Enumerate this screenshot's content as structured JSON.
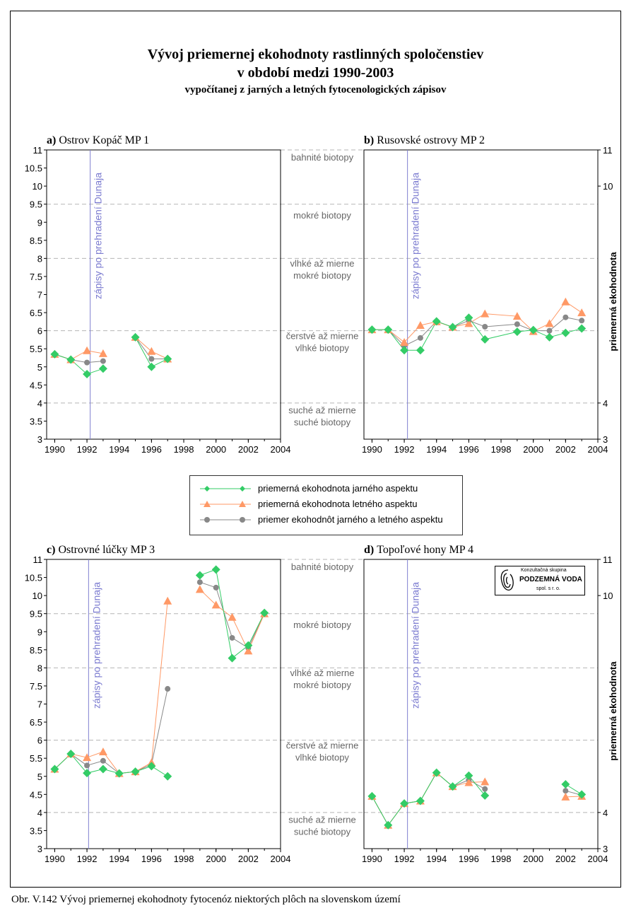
{
  "title_line1": "Vývoj priemernej ekohodnoty rastlinných spoločenstiev",
  "title_line2": "v období medzi 1990-2003",
  "title_line3": "vypočítanej z jarných a letných fytocenologických zápisov",
  "caption": "Obr. V.142 Vývoj priemernej ekohodnoty fytocenóz niektorých plôch na slovenskom území",
  "logo": {
    "line1": "Konzultačná skupina",
    "line2": "PODZEMNÁ VODA",
    "line3": "spol. s r. o."
  },
  "legend": [
    {
      "label": "priemerná ekohodnota jarného aspektu",
      "color": "#33cc66",
      "marker": "diamond"
    },
    {
      "label": "priemerná ekohodnota letného aspektu",
      "color": "#ff9966",
      "marker": "triangle"
    },
    {
      "label": "priemer ekohodnôt jarného a letného aspektu",
      "color": "#888888",
      "marker": "circle"
    }
  ],
  "biotope_zones": [
    {
      "lines": [
        "bahnité biotopy"
      ]
    },
    {
      "lines": [
        "mokré biotopy"
      ]
    },
    {
      "lines": [
        "vlhké až mierne",
        "mokré biotopy"
      ]
    },
    {
      "lines": [
        "čerstvé až mierne",
        "vlhké biotopy"
      ]
    },
    {
      "lines": [
        "suché až mierne",
        "suché biotopy"
      ]
    }
  ],
  "right_axis_label": "priemerná ekohodnota",
  "chart_data": [
    {
      "type": "line",
      "title_bold": "a)",
      "title_rest": "Ostrov Kopáč MP 1",
      "annotation": "zápisy po prehradení Dunaja",
      "annotation_x": 1992.2,
      "xlim": [
        1989.5,
        2004
      ],
      "ylim": [
        3,
        11
      ],
      "x_ticks": [
        1990,
        1992,
        1994,
        1996,
        1998,
        2000,
        2002,
        2004
      ],
      "y_ticks": [
        "3",
        "3.5",
        "4",
        "4.5",
        "5",
        "5.5",
        "6",
        "6.5",
        "7",
        "7.5",
        "8",
        "8.5",
        "9",
        "9.5",
        "10",
        "10.5",
        "11"
      ],
      "y_tick_side": "left",
      "reference_lines": [
        4,
        6,
        8,
        9.5,
        11
      ],
      "series": [
        {
          "name": "priemerná ekohodnota jarného aspektu",
          "x": [
            1990,
            1991,
            1992,
            1993,
            null,
            1995,
            1996,
            1997
          ],
          "y": [
            5.35,
            5.2,
            4.8,
            4.95,
            null,
            5.82,
            5.0,
            5.22
          ]
        },
        {
          "name": "priemerná ekohodnota letného aspektu",
          "x": [
            1990,
            1991,
            1992,
            1993,
            null,
            1995,
            1996,
            1997
          ],
          "y": [
            5.35,
            5.2,
            5.45,
            5.37,
            null,
            5.82,
            5.43,
            5.22
          ]
        },
        {
          "name": "priemer ekohodnôt jarného a letného aspektu",
          "x": [
            1990,
            1991,
            1992,
            1993,
            null,
            1995,
            1996,
            1997
          ],
          "y": [
            5.35,
            5.2,
            5.12,
            5.16,
            null,
            5.82,
            5.22,
            5.22
          ]
        }
      ]
    },
    {
      "type": "line",
      "title_bold": "b)",
      "title_rest": "Rusovské ostrovy MP 2",
      "annotation": "zápisy po prehradení Dunaja",
      "annotation_x": 1992.2,
      "xlim": [
        1989.5,
        2004
      ],
      "ylim": [
        3,
        11
      ],
      "x_ticks": [
        1990,
        1992,
        1994,
        1996,
        1998,
        2000,
        2002,
        2004
      ],
      "y_ticks": [
        "3",
        "4",
        "10",
        "11"
      ],
      "y_tick_values": [
        3,
        4,
        10,
        11
      ],
      "y_tick_side": "right",
      "reference_lines": [
        4,
        6,
        8,
        9.5,
        11
      ],
      "series": [
        {
          "name": "priemerná ekohodnota jarného aspektu",
          "x": [
            1990,
            1991,
            1992,
            1993,
            1994,
            1995,
            1996,
            1997,
            1999,
            2000,
            2001,
            2002,
            2003
          ],
          "y": [
            6.03,
            6.03,
            5.46,
            5.46,
            6.26,
            6.1,
            6.36,
            5.76,
            5.97,
            6.02,
            5.82,
            5.94,
            6.06
          ]
        },
        {
          "name": "priemerná ekohodnota letného aspektu",
          "x": [
            1990,
            1991,
            1992,
            1993,
            1994,
            1995,
            1996,
            1997,
            1999,
            2000,
            2001,
            2002,
            2003
          ],
          "y": [
            6.03,
            6.03,
            5.68,
            6.15,
            6.25,
            6.1,
            6.2,
            6.47,
            6.4,
            5.98,
            6.2,
            6.8,
            6.5
          ]
        },
        {
          "name": "priemer ekohodnôt jarného a letného aspektu",
          "x": [
            1990,
            1991,
            1992,
            1993,
            1994,
            1995,
            1996,
            1997,
            1999,
            2000,
            2001,
            2002,
            2003
          ],
          "y": [
            6.03,
            6.03,
            5.58,
            5.8,
            6.26,
            6.1,
            6.28,
            6.11,
            6.18,
            6.0,
            6.0,
            6.37,
            6.28
          ]
        }
      ]
    },
    {
      "type": "line",
      "title_bold": "c)",
      "title_rest": "Ostrovné lúčky MP 3",
      "annotation": "zápisy po prehradení Dunaja",
      "annotation_x": 1992.1,
      "xlim": [
        1989.5,
        2004
      ],
      "ylim": [
        3,
        11
      ],
      "x_ticks": [
        1990,
        1992,
        1994,
        1996,
        1998,
        2000,
        2002,
        2004
      ],
      "y_ticks": [
        "3",
        "3.5",
        "4",
        "4.5",
        "5",
        "5.5",
        "6",
        "6.5",
        "7",
        "7.5",
        "8",
        "8.5",
        "9",
        "9.5",
        "10",
        "10.5",
        "11"
      ],
      "y_tick_side": "left",
      "reference_lines": [
        4,
        6,
        8,
        9.5,
        11
      ],
      "series": [
        {
          "name": "priemerná ekohodnota jarného aspektu",
          "x": [
            1990,
            1991,
            1992,
            1993,
            1994,
            1995,
            1996,
            1997,
            null,
            1999,
            2000,
            2001,
            2002,
            2003
          ],
          "y": [
            5.2,
            5.62,
            5.09,
            5.2,
            5.08,
            5.13,
            5.28,
            5.0,
            null,
            10.56,
            10.72,
            8.27,
            8.62,
            9.52
          ]
        },
        {
          "name": "priemerná ekohodnota letného aspektu",
          "x": [
            1990,
            1991,
            1992,
            1993,
            1994,
            1995,
            1996,
            1997,
            null,
            1999,
            2000,
            2001,
            2002,
            2003
          ],
          "y": [
            5.2,
            5.62,
            5.52,
            5.68,
            5.08,
            5.13,
            5.38,
            9.85,
            null,
            10.17,
            9.74,
            9.4,
            8.47,
            9.5
          ]
        },
        {
          "name": "priemer ekohodnôt jarného a letného aspektu",
          "x": [
            1990,
            1991,
            1992,
            1993,
            1994,
            1995,
            1996,
            1997,
            null,
            1999,
            2000,
            2001,
            2002,
            2003
          ],
          "y": [
            5.2,
            5.62,
            5.3,
            5.43,
            5.08,
            5.13,
            5.33,
            7.42,
            null,
            10.37,
            10.22,
            8.83,
            8.55,
            9.51
          ]
        }
      ]
    },
    {
      "type": "line",
      "title_bold": "d)",
      "title_rest": "Topoľové hony MP 4",
      "annotation": "zápisy po prehradení Dunaja",
      "annotation_x": 1992.2,
      "xlim": [
        1989.5,
        2004
      ],
      "ylim": [
        3,
        11
      ],
      "x_ticks": [
        1990,
        1992,
        1994,
        1996,
        1998,
        2000,
        2002,
        2004
      ],
      "y_ticks": [
        "3",
        "4",
        "10",
        "11"
      ],
      "y_tick_values": [
        3,
        4,
        10,
        11
      ],
      "y_tick_side": "right",
      "reference_lines": [
        4,
        6,
        8,
        9.5,
        11
      ],
      "series": [
        {
          "name": "priemerná ekohodnota jarného aspektu",
          "x": [
            1990,
            1991,
            1992,
            1993,
            1994,
            1995,
            1996,
            1997,
            null,
            2002,
            2003
          ],
          "y": [
            4.45,
            3.65,
            4.25,
            4.32,
            5.1,
            4.72,
            5.02,
            4.47,
            null,
            4.78,
            4.5
          ]
        },
        {
          "name": "priemerná ekohodnota letného aspektu",
          "x": [
            1990,
            1991,
            1992,
            1993,
            1994,
            1995,
            1996,
            1997,
            null,
            2002,
            2003
          ],
          "y": [
            4.45,
            3.65,
            4.25,
            4.32,
            5.1,
            4.72,
            4.83,
            4.85,
            null,
            4.43,
            4.45
          ]
        },
        {
          "name": "priemer ekohodnôt jarného a letného aspektu",
          "x": [
            1990,
            1991,
            1992,
            1993,
            1994,
            1995,
            1996,
            1997,
            null,
            2002,
            2003
          ],
          "y": [
            4.45,
            3.65,
            4.25,
            4.32,
            5.1,
            4.72,
            4.9,
            4.65,
            null,
            4.6,
            4.48
          ]
        }
      ]
    }
  ]
}
